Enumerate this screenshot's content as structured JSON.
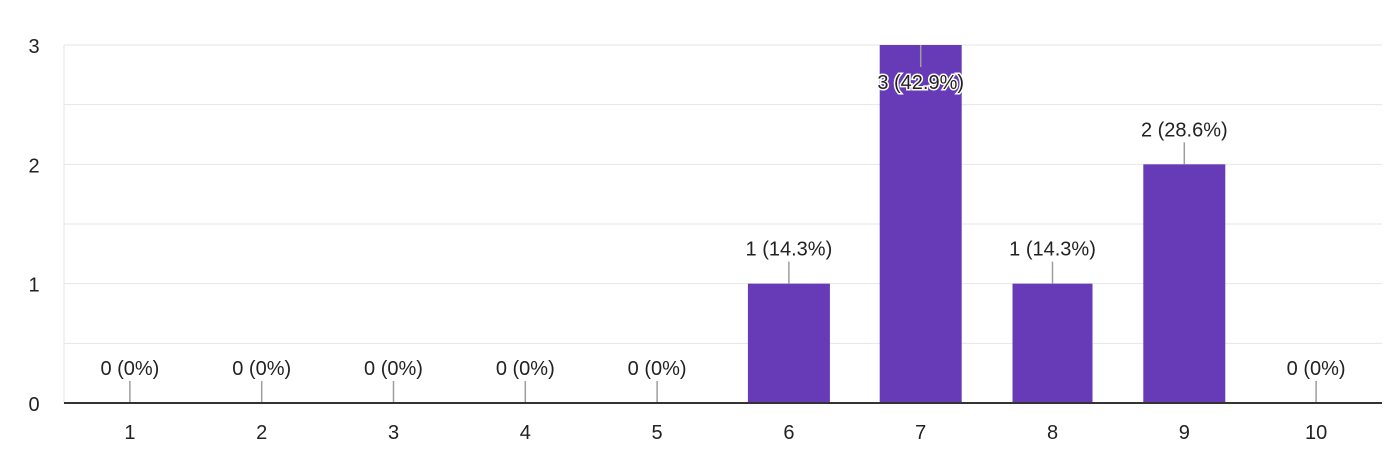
{
  "chart_data": {
    "type": "bar",
    "title": "",
    "xlabel": "",
    "ylabel": "",
    "categories": [
      "1",
      "2",
      "3",
      "4",
      "5",
      "6",
      "7",
      "8",
      "9",
      "10"
    ],
    "values": [
      0,
      0,
      0,
      0,
      0,
      1,
      3,
      1,
      2,
      0
    ],
    "data_labels": [
      "0 (0%)",
      "0 (0%)",
      "0 (0%)",
      "0 (0%)",
      "0 (0%)",
      "1 (14.3%)",
      "3 (42.9%)",
      "1 (14.3%)",
      "2 (28.6%)",
      "0 (0%)"
    ],
    "y_ticks": [
      "0",
      "1",
      "2",
      "3"
    ],
    "ylim": [
      0,
      3
    ],
    "grid": true,
    "legend": "none",
    "colors": {
      "bar": "#673ab7",
      "grid": "#e6e6e6",
      "axis": "#333333",
      "text": "#222222",
      "leader": "#9e9e9e"
    }
  }
}
